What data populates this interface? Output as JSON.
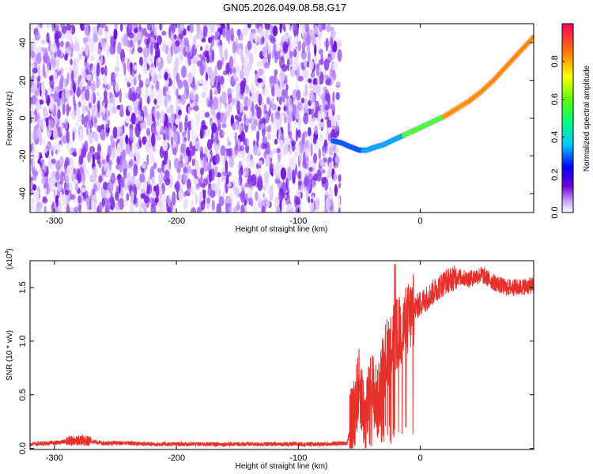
{
  "title": "GN05.2026.049.08.58.G17",
  "chart_data": [
    {
      "type": "heatmap",
      "xlabel": "Height of straight line (km)",
      "ylabel": "Frequency (Hz)",
      "xlim": [
        -320,
        93
      ],
      "ylim": [
        -50,
        50
      ],
      "xticks": [
        -300,
        -200,
        -100,
        0
      ],
      "yticks": [
        -40,
        -20,
        0,
        20,
        40
      ],
      "noise_region_x": [
        -320,
        -66
      ],
      "ridge": {
        "x": [
          -72,
          -65,
          -58,
          -50,
          -44,
          -40,
          -30,
          -20,
          -10,
          0,
          10,
          20,
          30,
          40,
          50,
          60,
          70,
          80,
          93
        ],
        "y": [
          -12,
          -13,
          -15,
          -17,
          -17,
          -16,
          -14,
          -11,
          -8,
          -5,
          -2,
          1,
          5,
          9,
          14,
          20,
          27,
          34,
          43
        ]
      },
      "colorbar": {
        "label": "Normalized spectral amplitude",
        "range": [
          0.0,
          1.0
        ],
        "ticks": [
          "0.0",
          "0.2",
          "0.4",
          "0.6",
          "0.8"
        ]
      }
    },
    {
      "type": "line",
      "xlabel": "Height of straight line (km)",
      "ylabel": "SNR (10 * v/v)",
      "exponent_label": "(x10",
      "exponent_power": "4",
      "exponent_close": ")",
      "xlim": [
        -320,
        93
      ],
      "ylim": [
        -0.01,
        1.75
      ],
      "xticks": [
        -300,
        -200,
        -100,
        0
      ],
      "yticks": [
        "0.0",
        "0.5",
        "1.0",
        "1.5"
      ],
      "series": [
        {
          "name": "SNR",
          "color": "#e8302a",
          "x": [
            -320,
            -300,
            -280,
            -260,
            -240,
            -220,
            -200,
            -180,
            -160,
            -140,
            -120,
            -100,
            -80,
            -60,
            -55,
            -50,
            -45,
            -40,
            -35,
            -30,
            -25,
            -20,
            -15,
            -10,
            -5,
            0,
            10,
            20,
            30,
            40,
            50,
            60,
            70,
            80,
            93
          ],
          "y": [
            0.04,
            0.05,
            0.08,
            0.05,
            0.05,
            0.04,
            0.04,
            0.04,
            0.04,
            0.04,
            0.04,
            0.04,
            0.04,
            0.05,
            0.3,
            0.6,
            0.25,
            0.6,
            0.4,
            0.8,
            0.95,
            1.05,
            1.1,
            1.2,
            1.3,
            1.35,
            1.45,
            1.55,
            1.6,
            1.58,
            1.62,
            1.55,
            1.5,
            1.5,
            1.52
          ]
        }
      ]
    }
  ]
}
